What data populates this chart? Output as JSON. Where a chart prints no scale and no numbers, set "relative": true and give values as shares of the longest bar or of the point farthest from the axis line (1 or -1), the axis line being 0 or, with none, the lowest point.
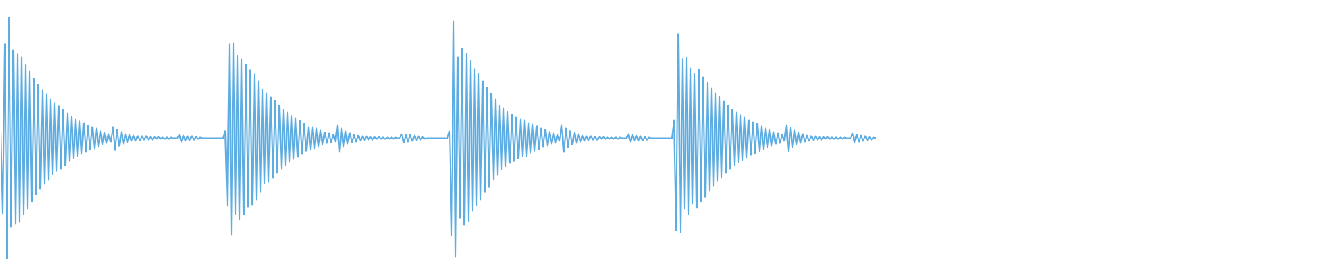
{
  "chart_data": {
    "type": "line",
    "relative": true,
    "categories": [
      null,
      null,
      null,
      null,
      null,
      null,
      null,
      null,
      null,
      null,
      null,
      null,
      null,
      null,
      null,
      null,
      null,
      null,
      null,
      null,
      null,
      null,
      null,
      null,
      null,
      null,
      null,
      null,
      null,
      null,
      null,
      null,
      null,
      null,
      null,
      null,
      null,
      null,
      null,
      null,
      null,
      null,
      null,
      null,
      null,
      null,
      null,
      null,
      null,
      null,
      null,
      null,
      null,
      null,
      null,
      null,
      null,
      null,
      null,
      null,
      null,
      null,
      null,
      null,
      null,
      null,
      null,
      null,
      null,
      null,
      null,
      null,
      null,
      null,
      null,
      null,
      null,
      null,
      null,
      null,
      null,
      null,
      null,
      null,
      null,
      null,
      null,
      null,
      null,
      null,
      null,
      null,
      null,
      null,
      null,
      null,
      null,
      null,
      null,
      null,
      null,
      null,
      null,
      null,
      null,
      null,
      null,
      null,
      null,
      null,
      null,
      null,
      null,
      null,
      null,
      null,
      null,
      null,
      null,
      null,
      null,
      null,
      null,
      null,
      null,
      null,
      null,
      null,
      null,
      null,
      null,
      null,
      null,
      null,
      null,
      null,
      null,
      null,
      null,
      null,
      null,
      null,
      null,
      null,
      null,
      null,
      null,
      null,
      null,
      null,
      null,
      null,
      null,
      null,
      null,
      null,
      null,
      null,
      null,
      null,
      null,
      null,
      null,
      null,
      null,
      null,
      null,
      null,
      null,
      null,
      null,
      null,
      null,
      null,
      null,
      null,
      null,
      null,
      null,
      null,
      null,
      null,
      null,
      null,
      null,
      null,
      null,
      null,
      null,
      null,
      null,
      null,
      null,
      null,
      null,
      null,
      null,
      null,
      null,
      null,
      null,
      null,
      null,
      null,
      null,
      null,
      null,
      null,
      null,
      null,
      null,
      null,
      null,
      null,
      null,
      null,
      null,
      null,
      null,
      null,
      null,
      null,
      null,
      null,
      null,
      null,
      null,
      null,
      null,
      null,
      null,
      null,
      null,
      null,
      null,
      null,
      null,
      null,
      null,
      null,
      null,
      null,
      null,
      null,
      null,
      null,
      null,
      null,
      null,
      null,
      null,
      null,
      null,
      null,
      null,
      null,
      null,
      null,
      null,
      null,
      null,
      null,
      null,
      null,
      null,
      null,
      null,
      null,
      null,
      null,
      null,
      null,
      null,
      null,
      null,
      null,
      null,
      null,
      null,
      null,
      null,
      null,
      null,
      null,
      null,
      null,
      null,
      null,
      null,
      null,
      null,
      null,
      null,
      null,
      null,
      null,
      null,
      null,
      null,
      null,
      null,
      null,
      null,
      null,
      null,
      null,
      null,
      null,
      null,
      null,
      null,
      null,
      null,
      null,
      null,
      null,
      null,
      null,
      null,
      null,
      null,
      null,
      null,
      null,
      null,
      null,
      null,
      null,
      null,
      null,
      null,
      null,
      null,
      null,
      null,
      null,
      null,
      null,
      null,
      null,
      null,
      null,
      null,
      null,
      null,
      null,
      null,
      null,
      null,
      null,
      null,
      null,
      null,
      null,
      null,
      null,
      null,
      null,
      null,
      null,
      null,
      null,
      null,
      null,
      null,
      null,
      null,
      null,
      null,
      null,
      null,
      null,
      null,
      null,
      null,
      null,
      null,
      null,
      null,
      null,
      null,
      null,
      null,
      null,
      null,
      null,
      null,
      null,
      null,
      null,
      null,
      null,
      null,
      null,
      null,
      null,
      null,
      null,
      null,
      null,
      null,
      null,
      null,
      null,
      null,
      null,
      null,
      null,
      null,
      null,
      null,
      null,
      null,
      null,
      null,
      null,
      null,
      null,
      null,
      null,
      null,
      null
    ],
    "series": [
      {
        "color": "#5dade2",
        "values": [
          0.529,
          0.188,
          0.89,
          0,
          1,
          0.133,
          0.864,
          0.145,
          0.847,
          0.153,
          0.835,
          0.185,
          0.804,
          0.208,
          0.778,
          0.239,
          0.746,
          0.268,
          0.721,
          0.291,
          0.698,
          0.311,
          0.681,
          0.328,
          0.66,
          0.351,
          0.643,
          0.365,
          0.632,
          0.374,
          0.617,
          0.388,
          0.603,
          0.405,
          0.589,
          0.417,
          0.577,
          0.426,
          0.569,
          0.434,
          0.563,
          0.443,
          0.552,
          0.454,
          0.546,
          0.457,
          0.54,
          0.466,
          0.529,
          0.474,
          0.523,
          0.48,
          0.517,
          0.486,
          0.546,
          0.451,
          0.534,
          0.468,
          0.526,
          0.477,
          0.517,
          0.483,
          0.514,
          0.489,
          0.511,
          0.489,
          0.509,
          0.491,
          0.509,
          0.494,
          0.509,
          0.494,
          0.506,
          0.494,
          0.506,
          0.497,
          0.506,
          0.497,
          0.503,
          0.497,
          0.503,
          0.497,
          0.503,
          0.5,
          0.5,
          0.5,
          0.514,
          0.486,
          0.511,
          0.489,
          0.509,
          0.491,
          0.509,
          0.494,
          0.506,
          0.497,
          0.503,
          0.5,
          0.5,
          0.5,
          0.5,
          0.5,
          0.5,
          0.5,
          0.5,
          0.5,
          0.5,
          0.5,
          0.529,
          0.219,
          0.89,
          0.099,
          0.893,
          0.185,
          0.841,
          0.165,
          0.827,
          0.185,
          0.804,
          0.216,
          0.781,
          0.225,
          0.764,
          0.245,
          0.735,
          0.279,
          0.701,
          0.314,
          0.686,
          0.319,
          0.669,
          0.337,
          0.655,
          0.357,
          0.635,
          0.374,
          0.617,
          0.388,
          0.606,
          0.403,
          0.592,
          0.414,
          0.583,
          0.423,
          0.572,
          0.434,
          0.56,
          0.448,
          0.546,
          0.454,
          0.546,
          0.457,
          0.54,
          0.466,
          0.532,
          0.474,
          0.523,
          0.48,
          0.52,
          0.483,
          0.514,
          0.486,
          0.554,
          0.443,
          0.54,
          0.466,
          0.529,
          0.477,
          0.52,
          0.483,
          0.514,
          0.486,
          0.511,
          0.489,
          0.509,
          0.491,
          0.509,
          0.494,
          0.506,
          0.494,
          0.506,
          0.497,
          0.506,
          0.497,
          0.503,
          0.497,
          0.503,
          0.497,
          0.503,
          0.497,
          0.503,
          0.5,
          0.5,
          0.517,
          0.483,
          0.514,
          0.486,
          0.514,
          0.489,
          0.511,
          0.491,
          0.509,
          0.494,
          0.506,
          0.497,
          0.5,
          0.5,
          0.5,
          0.5,
          0.5,
          0.5,
          0.5,
          0.5,
          0.5,
          0.5,
          0.5,
          0.529,
          0.096,
          0.984,
          0.01,
          0.835,
          0.17,
          0.87,
          0.142,
          0.85,
          0.156,
          0.821,
          0.199,
          0.787,
          0.222,
          0.766,
          0.245,
          0.735,
          0.279,
          0.709,
          0.299,
          0.683,
          0.328,
          0.66,
          0.348,
          0.635,
          0.371,
          0.623,
          0.383,
          0.609,
          0.397,
          0.597,
          0.405,
          0.586,
          0.417,
          0.577,
          0.426,
          0.574,
          0.426,
          0.563,
          0.44,
          0.557,
          0.448,
          0.549,
          0.454,
          0.54,
          0.466,
          0.534,
          0.468,
          0.526,
          0.477,
          0.52,
          0.48,
          0.514,
          0.489,
          0.554,
          0.443,
          0.54,
          0.463,
          0.529,
          0.474,
          0.523,
          0.48,
          0.517,
          0.486,
          0.511,
          0.489,
          0.509,
          0.491,
          0.509,
          0.494,
          0.506,
          0.494,
          0.506,
          0.497,
          0.506,
          0.497,
          0.503,
          0.497,
          0.503,
          0.497,
          0.503,
          0.497,
          0.503,
          0.5,
          0.5,
          0.5,
          0.517,
          0.486,
          0.514,
          0.489,
          0.511,
          0.489,
          0.509,
          0.491,
          0.506,
          0.494,
          0.503,
          0.5,
          0.5,
          0.5,
          0.5,
          0.5,
          0.5,
          0.5,
          0.5,
          0.5,
          0.5,
          0.5,
          0.574,
          0.119,
          0.93,
          0.11,
          0.827,
          0.208,
          0.832,
          0.185,
          0.789,
          0.228,
          0.766,
          0.211,
          0.784,
          0.239,
          0.752,
          0.256,
          0.729,
          0.282,
          0.706,
          0.302,
          0.686,
          0.322,
          0.672,
          0.337,
          0.652,
          0.357,
          0.635,
          0.374,
          0.617,
          0.388,
          0.606,
          0.4,
          0.595,
          0.408,
          0.586,
          0.42,
          0.574,
          0.431,
          0.566,
          0.437,
          0.56,
          0.446,
          0.549,
          0.454,
          0.54,
          0.463,
          0.534,
          0.468,
          0.526,
          0.477,
          0.52,
          0.48,
          0.514,
          0.489,
          0.554,
          0.446,
          0.543,
          0.463,
          0.532,
          0.474,
          0.523,
          0.48,
          0.517,
          0.486,
          0.511,
          0.489,
          0.509,
          0.491,
          0.509,
          0.494,
          0.506,
          0.494,
          0.506,
          0.497,
          0.506,
          0.497,
          0.503,
          0.497,
          0.503,
          0.497,
          0.503,
          0.497,
          0.503,
          0.5,
          0.5,
          0.5,
          0.52,
          0.483,
          0.514,
          0.486,
          0.511,
          0.489,
          0.509,
          0.491,
          0.506,
          0.494,
          0.503,
          0.5
        ]
      }
    ]
  }
}
